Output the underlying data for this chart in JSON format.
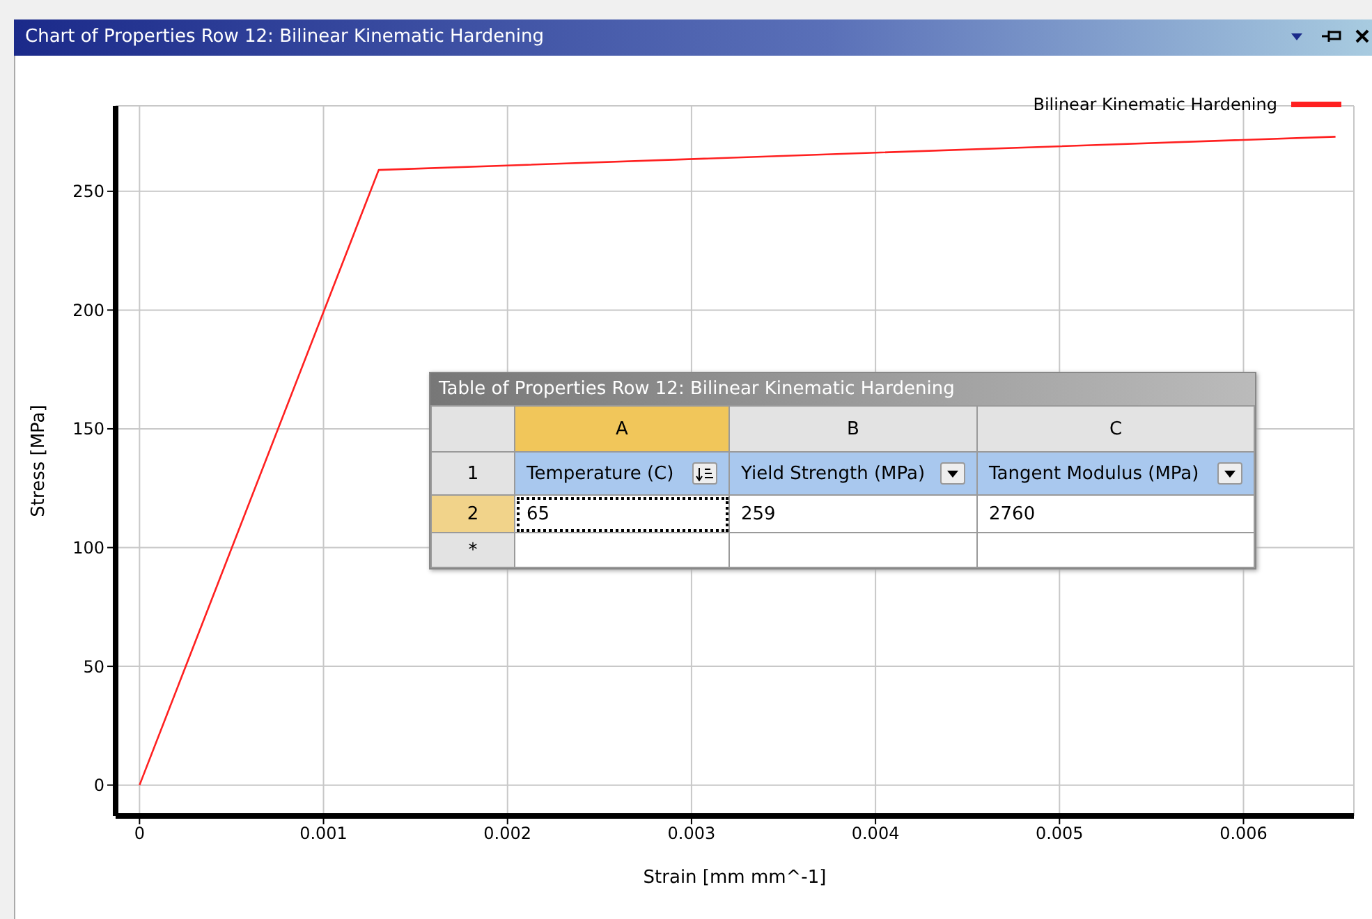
{
  "chart_data": {
    "type": "line",
    "title": "Chart of Properties Row 12: Bilinear Kinematic Hardening",
    "xlabel": "Strain  [mm mm^-1]",
    "ylabel": "Stress  [MPa]",
    "x": [
      0,
      0.0013,
      0.0065
    ],
    "series": [
      {
        "name": "Bilinear Kinematic Hardening",
        "color": "#ff2020",
        "values": [
          0,
          259,
          273
        ]
      }
    ],
    "xlim": [
      -0.00013,
      0.0066
    ],
    "xticks": [
      0,
      0.001,
      0.002,
      0.003,
      0.004,
      0.005,
      0.006
    ],
    "ylim": [
      -13,
      286
    ],
    "yticks": [
      0,
      50,
      100,
      150,
      200,
      250
    ],
    "grid": true,
    "legend": "top right",
    "marker": "none",
    "line_style": "solid",
    "annotations": [
      "Table of Properties Row 12: Bilinear Kinematic Hardening",
      "A",
      "B",
      "C",
      "1",
      "2",
      "*",
      "Temperature (C)",
      "Yield Strength (MPa)",
      "Tangent Modulus (MPa)",
      "65",
      "259",
      "2760"
    ]
  }
}
